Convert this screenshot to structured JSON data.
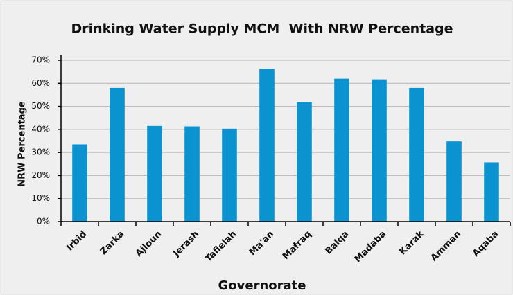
{
  "chart_data": {
    "type": "bar",
    "title": "Drinking Water Supply MCM  With NRW Percentage",
    "x_label": "Governorate",
    "y_label": "NRW Percentage",
    "categories": [
      "Irbid",
      "Zarka",
      "Ajloun",
      "Jerash",
      "Tafielah",
      "Ma'an",
      "Mafraq",
      "Balqa",
      "Madaba",
      "Karak",
      "Amman",
      "Aqaba"
    ],
    "values": [
      33.5,
      58,
      41.5,
      41.3,
      40.3,
      66.3,
      51.8,
      62,
      61.7,
      58,
      34.8,
      25.7
    ],
    "color": "#0b93d0",
    "ylim": [
      0,
      70
    ],
    "yticks": [
      {
        "value": 0,
        "label": "0%"
      },
      {
        "value": 10,
        "label": "10%"
      },
      {
        "value": 20,
        "label": "20%"
      },
      {
        "value": 30,
        "label": "30%"
      },
      {
        "value": 40,
        "label": "40%"
      },
      {
        "value": 50,
        "label": "50%"
      },
      {
        "value": 60,
        "label": "60%"
      },
      {
        "value": 70,
        "label": "70%"
      }
    ],
    "grid": true
  }
}
